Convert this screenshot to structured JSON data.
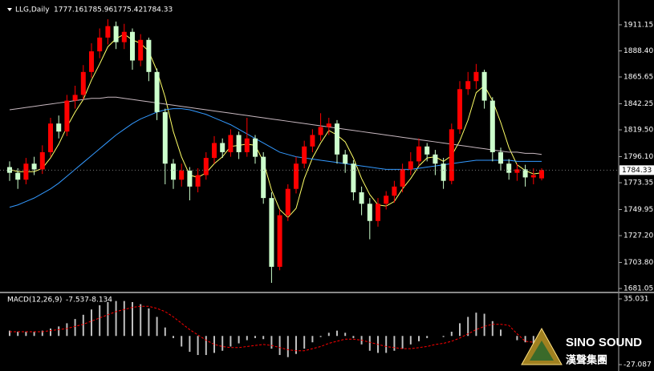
{
  "chart_data": [
    {
      "type": "candlestick",
      "title": "LLG,Daily",
      "up_color": "#ff0000",
      "down_color": "#ccffcc",
      "ylim": [
        1677.6,
        1929.3
      ],
      "yticks": [
        1911.15,
        {
          "value": 1888.4,
          "label": "1888.40"
        },
        1865.65,
        1842.25,
        {
          "value": 1819.5,
          "label": "1819.50"
        },
        {
          "value": 1796.1,
          "label": "1796.10"
        },
        1773.35,
        1749.95,
        {
          "value": 1727.2,
          "label": "1727.20"
        },
        {
          "value": 1703.8,
          "label": "1703.80"
        },
        1681.05
      ],
      "open": [
        1787,
        1782,
        1776,
        1790,
        1785,
        1800,
        1825,
        1818,
        1845,
        1850,
        1870,
        1888,
        1900,
        1910,
        1896,
        1905,
        1880,
        1898,
        1870,
        1835,
        1790,
        1776,
        1784,
        1770,
        1780,
        1795,
        1808,
        1800,
        1815,
        1800,
        1812,
        1796,
        1760,
        1700,
        1745,
        1768,
        1790,
        1805,
        1815,
        1822,
        1825,
        1798,
        1790,
        1765,
        1755,
        1740,
        1755,
        1762,
        1770,
        1785,
        1792,
        1805,
        1798,
        1790,
        1775,
        1820,
        1855,
        1862,
        1870,
        1845,
        1800,
        1790,
        1782,
        1785,
        1778,
        1777.16
      ],
      "high": [
        1792,
        1786,
        1795,
        1796,
        1806,
        1830,
        1832,
        1850,
        1858,
        1876,
        1895,
        1908,
        1916,
        1914,
        1912,
        1908,
        1903,
        1900,
        1873,
        1838,
        1794,
        1790,
        1787,
        1786,
        1800,
        1814,
        1812,
        1820,
        1818,
        1830,
        1815,
        1800,
        1765,
        1750,
        1772,
        1796,
        1810,
        1820,
        1834,
        1830,
        1828,
        1802,
        1793,
        1770,
        1760,
        1760,
        1766,
        1775,
        1790,
        1800,
        1812,
        1808,
        1802,
        1795,
        1825,
        1862,
        1870,
        1877,
        1872,
        1848,
        1804,
        1794,
        1790,
        1789,
        1786,
        1785.96
      ],
      "low": [
        1775,
        1768,
        1772,
        1780,
        1781,
        1796,
        1812,
        1814,
        1838,
        1846,
        1865,
        1882,
        1894,
        1890,
        1890,
        1872,
        1875,
        1862,
        1828,
        1772,
        1768,
        1770,
        1758,
        1765,
        1776,
        1790,
        1795,
        1796,
        1794,
        1796,
        1790,
        1755,
        1686,
        1697,
        1740,
        1764,
        1786,
        1800,
        1810,
        1815,
        1790,
        1782,
        1758,
        1745,
        1724,
        1735,
        1750,
        1756,
        1765,
        1780,
        1788,
        1792,
        1780,
        1768,
        1772,
        1816,
        1850,
        1855,
        1838,
        1792,
        1784,
        1776,
        1775,
        1770,
        1772,
        1775.42
      ],
      "close": [
        1782,
        1776,
        1790,
        1785,
        1800,
        1825,
        1818,
        1845,
        1850,
        1870,
        1888,
        1900,
        1910,
        1896,
        1905,
        1880,
        1898,
        1870,
        1835,
        1790,
        1776,
        1784,
        1770,
        1780,
        1795,
        1808,
        1800,
        1815,
        1800,
        1812,
        1796,
        1760,
        1700,
        1745,
        1768,
        1790,
        1805,
        1815,
        1822,
        1825,
        1798,
        1790,
        1765,
        1755,
        1740,
        1755,
        1762,
        1770,
        1785,
        1792,
        1805,
        1798,
        1790,
        1775,
        1820,
        1855,
        1862,
        1870,
        1845,
        1800,
        1790,
        1782,
        1785,
        1778,
        1780,
        1784.33
      ],
      "lines": [
        {
          "color": "#ffff66",
          "values": [
            1785,
            1783,
            1783,
            1783,
            1786,
            1795,
            1807,
            1822,
            1835,
            1846,
            1863,
            1877,
            1892,
            1899,
            1903,
            1898,
            1895,
            1888,
            1871,
            1848,
            1818,
            1796,
            1780,
            1778,
            1782,
            1790,
            1796,
            1805,
            1806,
            1807,
            1806,
            1792,
            1767,
            1750,
            1743,
            1751,
            1777,
            1795,
            1808,
            1819,
            1815,
            1809,
            1795,
            1777,
            1763,
            1754,
            1753,
            1757,
            1768,
            1777,
            1788,
            1795,
            1796,
            1792,
            1797,
            1810,
            1828,
            1852,
            1858,
            1845,
            1826,
            1804,
            1789,
            1784,
            1781,
            1782
          ]
        },
        {
          "color": "#c8b8c0",
          "values": [
            1837,
            1838,
            1839,
            1840,
            1841,
            1842,
            1843,
            1844,
            1845,
            1846,
            1847,
            1847,
            1848,
            1848,
            1847,
            1846,
            1845,
            1844,
            1843,
            1842,
            1841,
            1840,
            1839,
            1838,
            1837,
            1836,
            1835,
            1834,
            1833,
            1832,
            1831,
            1830,
            1829,
            1828,
            1827,
            1826,
            1825,
            1824,
            1823,
            1822,
            1821,
            1820,
            1819,
            1818,
            1817,
            1816,
            1815,
            1814,
            1813,
            1812,
            1811,
            1810,
            1809,
            1808,
            1807,
            1806,
            1805,
            1804,
            1803,
            1802,
            1801,
            1800,
            1800,
            1799,
            1799,
            1798
          ]
        },
        {
          "color": "#3399ff",
          "values": [
            1752,
            1754,
            1757,
            1760,
            1764,
            1768,
            1773,
            1779,
            1785,
            1791,
            1797,
            1803,
            1809,
            1815,
            1820,
            1825,
            1829,
            1832,
            1835,
            1837,
            1838,
            1838,
            1837,
            1835,
            1833,
            1830,
            1827,
            1824,
            1820,
            1816,
            1812,
            1808,
            1804,
            1800,
            1798,
            1796,
            1795,
            1794,
            1793,
            1792,
            1791,
            1790,
            1789,
            1788,
            1787,
            1786,
            1785,
            1785,
            1785,
            1785,
            1786,
            1787,
            1788,
            1789,
            1790,
            1791,
            1792,
            1793,
            1793,
            1793,
            1793,
            1793,
            1792,
            1792,
            1792,
            1792
          ]
        }
      ]
    },
    {
      "type": "macd",
      "title": "MACD(12,26,9)",
      "ylim": [
        -31.6,
        38.8
      ],
      "yticks": [
        35.031,
        -27.087
      ],
      "histogram": {
        "color": "#c0c0c0",
        "values": [
          5,
          4,
          4,
          4,
          5,
          7,
          9,
          12,
          16,
          20,
          25,
          29,
          32,
          33,
          33,
          32,
          30,
          26,
          18,
          8,
          -2,
          -10,
          -15,
          -18,
          -18,
          -16,
          -14,
          -10,
          -7,
          -4,
          -2,
          -3,
          -12,
          -18,
          -20,
          -17,
          -12,
          -6,
          -1,
          3,
          5,
          3,
          -2,
          -8,
          -14,
          -16,
          -16,
          -14,
          -12,
          -8,
          -5,
          -2,
          0,
          -1,
          4,
          12,
          18,
          22,
          21,
          14,
          6,
          0,
          -4,
          -6,
          -7,
          -7.537
        ]
      },
      "signal": {
        "color": "#ff0000",
        "values": [
          4,
          4,
          4,
          4,
          4,
          5,
          6,
          7,
          9,
          11,
          14,
          17,
          20,
          23,
          25,
          27,
          28,
          28,
          26,
          23,
          18,
          12,
          6,
          1,
          -4,
          -8,
          -10,
          -11,
          -11,
          -10,
          -9,
          -8,
          -9,
          -11,
          -13,
          -14,
          -14,
          -12,
          -10,
          -7,
          -5,
          -3,
          -3,
          -4,
          -6,
          -8,
          -10,
          -11,
          -12,
          -12,
          -11,
          -10,
          -8,
          -7,
          -5,
          -2,
          2,
          6,
          9,
          11,
          11,
          10,
          2,
          -5,
          -6,
          -8.134
        ]
      }
    },
    {
      "type": "watermark",
      "title": "SINO SOUND",
      "subtitle": "漢聲集團"
    }
  ]
}
